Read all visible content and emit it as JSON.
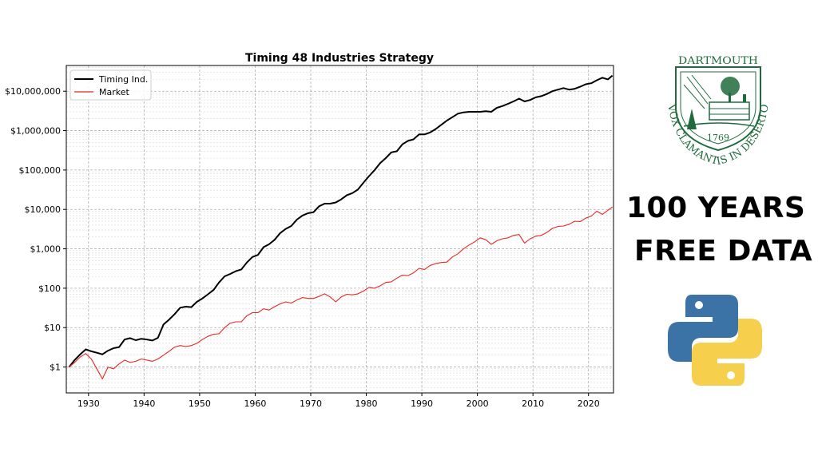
{
  "chart_data": {
    "type": "line",
    "title": "Timing 48 Industries Strategy",
    "xlabel": "",
    "ylabel": "",
    "yscale": "log",
    "xlim": [
      1926,
      2024.5
    ],
    "ylim": [
      0.22,
      45000000
    ],
    "x_ticks": [
      1930,
      1940,
      1950,
      1960,
      1970,
      1980,
      1990,
      2000,
      2010,
      2020
    ],
    "x_tick_labels": [
      "1930",
      "1940",
      "1950",
      "1960",
      "1970",
      "1980",
      "1990",
      "2000",
      "2010",
      "2020"
    ],
    "y_ticks": [
      1,
      10,
      100,
      1000,
      10000,
      100000,
      1000000,
      10000000
    ],
    "y_tick_labels": [
      "$1",
      "$10",
      "$100",
      "$1,000",
      "$10,000",
      "$100,000",
      "$1,000,000",
      "$10,000,000"
    ],
    "grid": true,
    "legend_position": "upper-left",
    "series": [
      {
        "name": "Timing Ind.",
        "color": "#000000",
        "x": [
          1926.5,
          1927.5,
          1928.5,
          1929.5,
          1930.5,
          1931.5,
          1932.5,
          1933.5,
          1934.5,
          1935.5,
          1936.5,
          1937.5,
          1938.5,
          1939.5,
          1940.5,
          1941.5,
          1942.5,
          1943.5,
          1944.5,
          1945.5,
          1946.5,
          1947.5,
          1948.5,
          1949.5,
          1950.5,
          1951.5,
          1952.5,
          1953.5,
          1954.5,
          1955.5,
          1956.5,
          1957.5,
          1958.5,
          1959.5,
          1960.5,
          1961.5,
          1962.5,
          1963.5,
          1964.5,
          1965.5,
          1966.5,
          1967.5,
          1968.5,
          1969.5,
          1970.5,
          1971.5,
          1972.5,
          1973.5,
          1974.5,
          1975.5,
          1976.5,
          1977.5,
          1978.5,
          1979.5,
          1980.5,
          1981.5,
          1982.5,
          1983.5,
          1984.5,
          1985.5,
          1986.5,
          1987.5,
          1988.5,
          1989.5,
          1990.5,
          1991.5,
          1992.5,
          1993.5,
          1994.5,
          1995.5,
          1996.5,
          1997.5,
          1998.5,
          1999.5,
          2000.5,
          2001.5,
          2002.5,
          2003.5,
          2004.5,
          2005.5,
          2006.5,
          2007.5,
          2008.5,
          2009.5,
          2010.5,
          2011.5,
          2012.5,
          2013.5,
          2014.5,
          2015.5,
          2016.5,
          2017.5,
          2018.5,
          2019.5,
          2020.5,
          2021.5,
          2022.5,
          2023.5,
          2024.3
        ],
        "values": [
          1,
          1.5,
          2.1,
          2.8,
          2.5,
          2.3,
          2.1,
          2.6,
          3,
          3.2,
          5,
          5.4,
          4.8,
          5.2,
          5,
          4.7,
          5.5,
          12,
          16,
          22,
          32,
          34,
          33,
          45,
          55,
          70,
          90,
          140,
          200,
          230,
          270,
          300,
          450,
          620,
          700,
          1100,
          1300,
          1700,
          2500,
          3200,
          3800,
          5500,
          7000,
          8000,
          8500,
          12000,
          14000,
          14000,
          15000,
          18000,
          23000,
          26000,
          32000,
          48000,
          70000,
          100000,
          150000,
          200000,
          280000,
          300000,
          450000,
          550000,
          600000,
          800000,
          800000,
          900000,
          1100000,
          1400000,
          1800000,
          2200000,
          2700000,
          2900000,
          3000000,
          3000000,
          3000000,
          3100000,
          3000000,
          3800000,
          4200000,
          4800000,
          5500000,
          6500000,
          5500000,
          6000000,
          7000000,
          7500000,
          8500000,
          10000000,
          11000000,
          12000000,
          11000000,
          11500000,
          13000000,
          15000000,
          16000000,
          19000000,
          22000000,
          20000000,
          25000000
        ]
      },
      {
        "name": "Market",
        "color": "#e8281e",
        "x": [
          1926.5,
          1927.5,
          1928.5,
          1929.5,
          1930.5,
          1931.5,
          1932.5,
          1933.5,
          1934.5,
          1935.5,
          1936.5,
          1937.5,
          1938.5,
          1939.5,
          1940.5,
          1941.5,
          1942.5,
          1943.5,
          1944.5,
          1945.5,
          1946.5,
          1947.5,
          1948.5,
          1949.5,
          1950.5,
          1951.5,
          1952.5,
          1953.5,
          1954.5,
          1955.5,
          1956.5,
          1957.5,
          1958.5,
          1959.5,
          1960.5,
          1961.5,
          1962.5,
          1963.5,
          1964.5,
          1965.5,
          1966.5,
          1967.5,
          1968.5,
          1969.5,
          1970.5,
          1971.5,
          1972.5,
          1973.5,
          1974.5,
          1975.5,
          1976.5,
          1977.5,
          1978.5,
          1979.5,
          1980.5,
          1981.5,
          1982.5,
          1983.5,
          1984.5,
          1985.5,
          1986.5,
          1987.5,
          1988.5,
          1989.5,
          1990.5,
          1991.5,
          1992.5,
          1993.5,
          1994.5,
          1995.5,
          1996.5,
          1997.5,
          1998.5,
          1999.5,
          2000.5,
          2001.5,
          2002.5,
          2003.5,
          2004.5,
          2005.5,
          2006.5,
          2007.5,
          2008.5,
          2009.5,
          2010.5,
          2011.5,
          2012.5,
          2013.5,
          2014.5,
          2015.5,
          2016.5,
          2017.5,
          2018.5,
          2019.5,
          2020.5,
          2021.5,
          2022.5,
          2023.5,
          2024.3
        ],
        "values": [
          1,
          1.3,
          1.8,
          2.2,
          1.6,
          0.9,
          0.5,
          1,
          0.9,
          1.2,
          1.5,
          1.3,
          1.4,
          1.6,
          1.5,
          1.4,
          1.6,
          2,
          2.5,
          3.2,
          3.5,
          3.3,
          3.5,
          4,
          5,
          6,
          6.8,
          7,
          10,
          13,
          14,
          14,
          20,
          24,
          24,
          30,
          28,
          34,
          40,
          45,
          42,
          50,
          58,
          55,
          55,
          62,
          72,
          60,
          45,
          60,
          70,
          68,
          72,
          85,
          105,
          100,
          115,
          140,
          145,
          180,
          215,
          210,
          245,
          320,
          300,
          380,
          420,
          450,
          460,
          620,
          750,
          1000,
          1250,
          1500,
          1900,
          1700,
          1300,
          1600,
          1800,
          1900,
          2200,
          2300,
          1400,
          1800,
          2100,
          2200,
          2600,
          3300,
          3700,
          3800,
          4200,
          5000,
          4900,
          6000,
          6800,
          9000,
          7500,
          9500,
          11500
        ]
      }
    ]
  },
  "seal": {
    "top_text": "DARTMOUTH",
    "bottom_text": "VOX CLAMANTIS IN DESERTO",
    "year": "1769",
    "color": "#1f6b3c"
  },
  "promo": {
    "line1": "100 YEARS",
    "line2": "FREE DATA"
  },
  "python_logo": {
    "icon": "python-logo-icon",
    "blue": "#3b73a7",
    "yellow": "#f6d04d"
  }
}
